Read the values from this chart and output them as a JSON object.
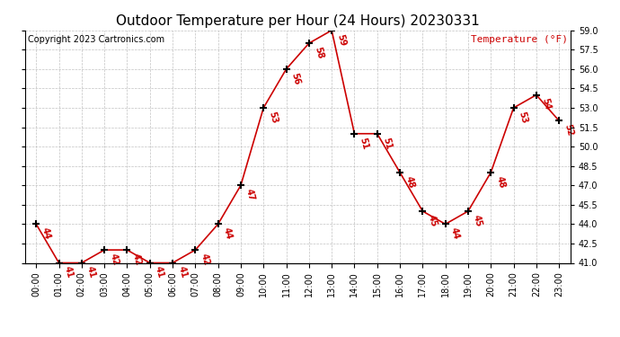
{
  "title": "Outdoor Temperature per Hour (24 Hours) 20230331",
  "copyright": "Copyright 2023 Cartronics.com",
  "legend_label": "Temperature (°F)",
  "hours": [
    "00:00",
    "01:00",
    "02:00",
    "03:00",
    "04:00",
    "05:00",
    "06:00",
    "07:00",
    "08:00",
    "09:00",
    "10:00",
    "11:00",
    "12:00",
    "13:00",
    "14:00",
    "15:00",
    "16:00",
    "17:00",
    "18:00",
    "19:00",
    "20:00",
    "21:00",
    "22:00",
    "23:00"
  ],
  "temperatures": [
    44,
    41,
    41,
    42,
    42,
    41,
    41,
    42,
    44,
    47,
    53,
    56,
    58,
    59,
    51,
    51,
    48,
    45,
    44,
    45,
    48,
    53,
    54,
    52
  ],
  "ylim": [
    41.0,
    59.0
  ],
  "yticks": [
    41.0,
    42.5,
    44.0,
    45.5,
    47.0,
    48.5,
    50.0,
    51.5,
    53.0,
    54.5,
    56.0,
    57.5,
    59.0
  ],
  "line_color": "#cc0000",
  "marker_color": "#000000",
  "label_color": "#cc0000",
  "title_color": "#000000",
  "copyright_color": "#000000",
  "legend_color": "#cc0000",
  "grid_color": "#bbbbbb",
  "bg_color": "#ffffff",
  "title_fontsize": 11,
  "label_fontsize": 8,
  "tick_fontsize": 7,
  "copyright_fontsize": 7
}
